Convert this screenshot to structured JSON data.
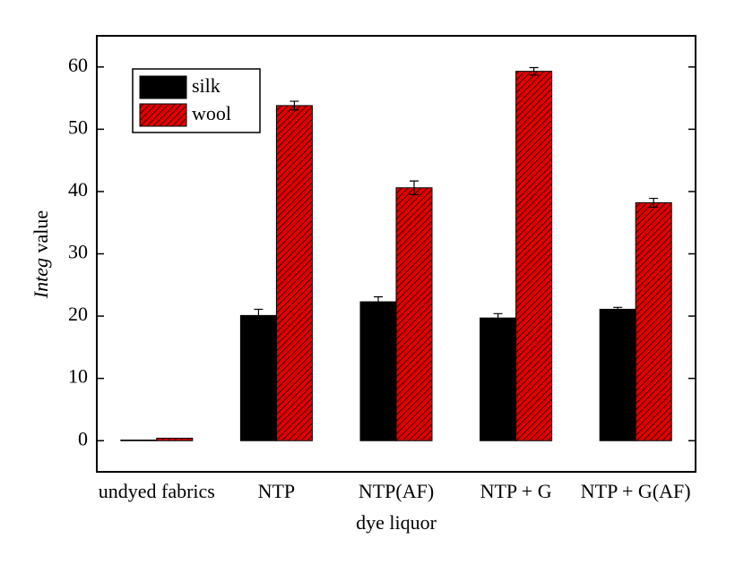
{
  "chart_data": {
    "type": "bar",
    "xlabel": "dye liquor",
    "ylabel_parts": [
      "Integ",
      "value"
    ],
    "categories": [
      "undyed fabrics",
      "NTP",
      "NTP(AF)",
      "NTP + G",
      "NTP + G(AF)"
    ],
    "series": [
      {
        "name": "silk",
        "color": "#000000",
        "values": [
          0.1,
          20.1,
          22.3,
          19.7,
          21.1
        ],
        "errors": [
          null,
          1.0,
          0.8,
          0.7,
          0.3
        ]
      },
      {
        "name": "wool",
        "color": "#e00000",
        "hatch": true,
        "values": [
          0.4,
          53.8,
          40.6,
          59.3,
          38.2
        ],
        "errors": [
          null,
          0.7,
          1.1,
          0.6,
          0.7
        ]
      }
    ],
    "ylim": [
      -5,
      65
    ],
    "yticks": [
      0,
      10,
      20,
      30,
      40,
      50,
      60
    ],
    "legend": "upper left"
  }
}
